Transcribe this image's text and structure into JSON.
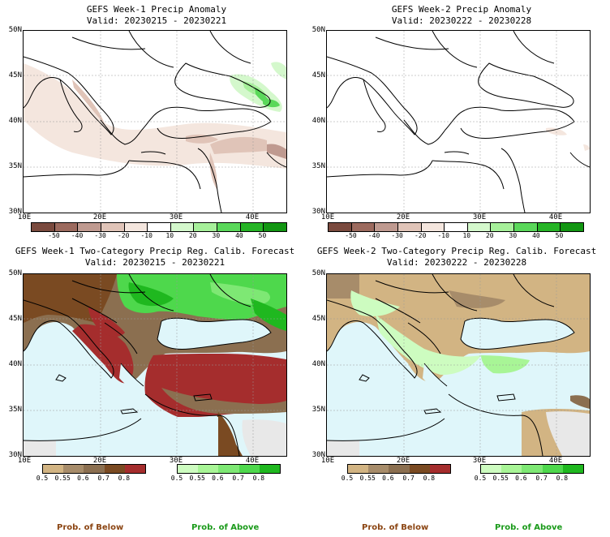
{
  "panels": {
    "tl": {
      "title": "GEFS Week-1 Precip Anomaly",
      "valid": "Valid: 20230215 - 20230221"
    },
    "tr": {
      "title": "GEFS Week-2 Precip Anomaly",
      "valid": "Valid: 20230222 - 20230228"
    },
    "bl": {
      "title": "GEFS Week-1 Two-Category Precip Reg. Calib. Forecast",
      "valid": "Valid: 20230215 - 20230221"
    },
    "br": {
      "title": "GEFS Week-2 Two-Category Precip Reg. Calib. Forecast",
      "valid": "Valid: 20230222 - 20230228"
    }
  },
  "lat_labels": [
    "50N",
    "45N",
    "40N",
    "35N",
    "30N"
  ],
  "lon_labels": [
    "10E",
    "20E",
    "30E",
    "40E"
  ],
  "anomaly_scale": {
    "labels": [
      "-50",
      "-40",
      "-30",
      "-20",
      "-10",
      "10",
      "20",
      "30",
      "40",
      "50"
    ],
    "colors": [
      "#7a4a3e",
      "#9c6a5e",
      "#bf9a90",
      "#e0c4b8",
      "#f4e6de",
      "#ffffff",
      "#d4f8cc",
      "#a6f09a",
      "#5ad85a",
      "#26b426",
      "#129612"
    ]
  },
  "prob_below": {
    "labels": [
      "0.5",
      "0.55",
      "0.6",
      "0.7",
      "0.8"
    ],
    "colors": [
      "#d2b483",
      "#a78c6a",
      "#8b6f50",
      "#7a4a22",
      "#a52d2d"
    ],
    "caption": "Prob. of Below",
    "caption_color": "#8b4513"
  },
  "prob_above": {
    "labels": [
      "0.5",
      "0.55",
      "0.6",
      "0.7",
      "0.8"
    ],
    "colors": [
      "#cdfcc0",
      "#a8f596",
      "#7ee874",
      "#4ed84c",
      "#1fb81f"
    ],
    "caption": "Prob. of Above",
    "caption_color": "#1a9a1a"
  },
  "colors": {
    "sea": "#dff6fa",
    "coast": "#000000",
    "nodata": "#e8e8e8"
  }
}
